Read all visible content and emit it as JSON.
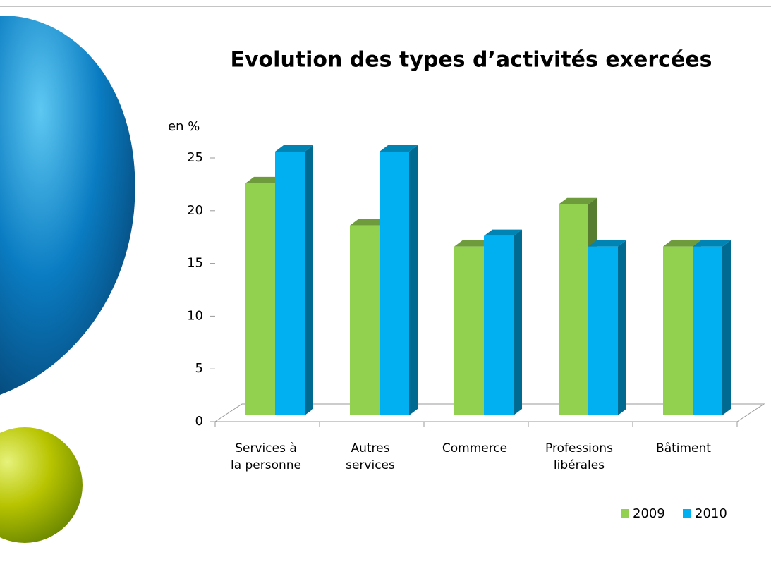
{
  "chart_data": {
    "type": "bar3d",
    "title": "Evolution des types d’activités exercées",
    "y_label": "en %",
    "categories": [
      "Services à\nla personne",
      "Autres\nservices",
      "Commerce",
      "Professions\nlibérales",
      "Bâtiment"
    ],
    "series": [
      {
        "name": "2009",
        "color": "#92d050",
        "values": [
          22,
          18,
          16,
          20,
          16
        ]
      },
      {
        "name": "2010",
        "color": "#00b0f0",
        "values": [
          25,
          25,
          17,
          16,
          16
        ]
      }
    ],
    "ylim": [
      0,
      25
    ],
    "yticks": [
      0,
      5,
      10,
      15,
      20,
      25
    ],
    "legend": "bottom-right"
  }
}
